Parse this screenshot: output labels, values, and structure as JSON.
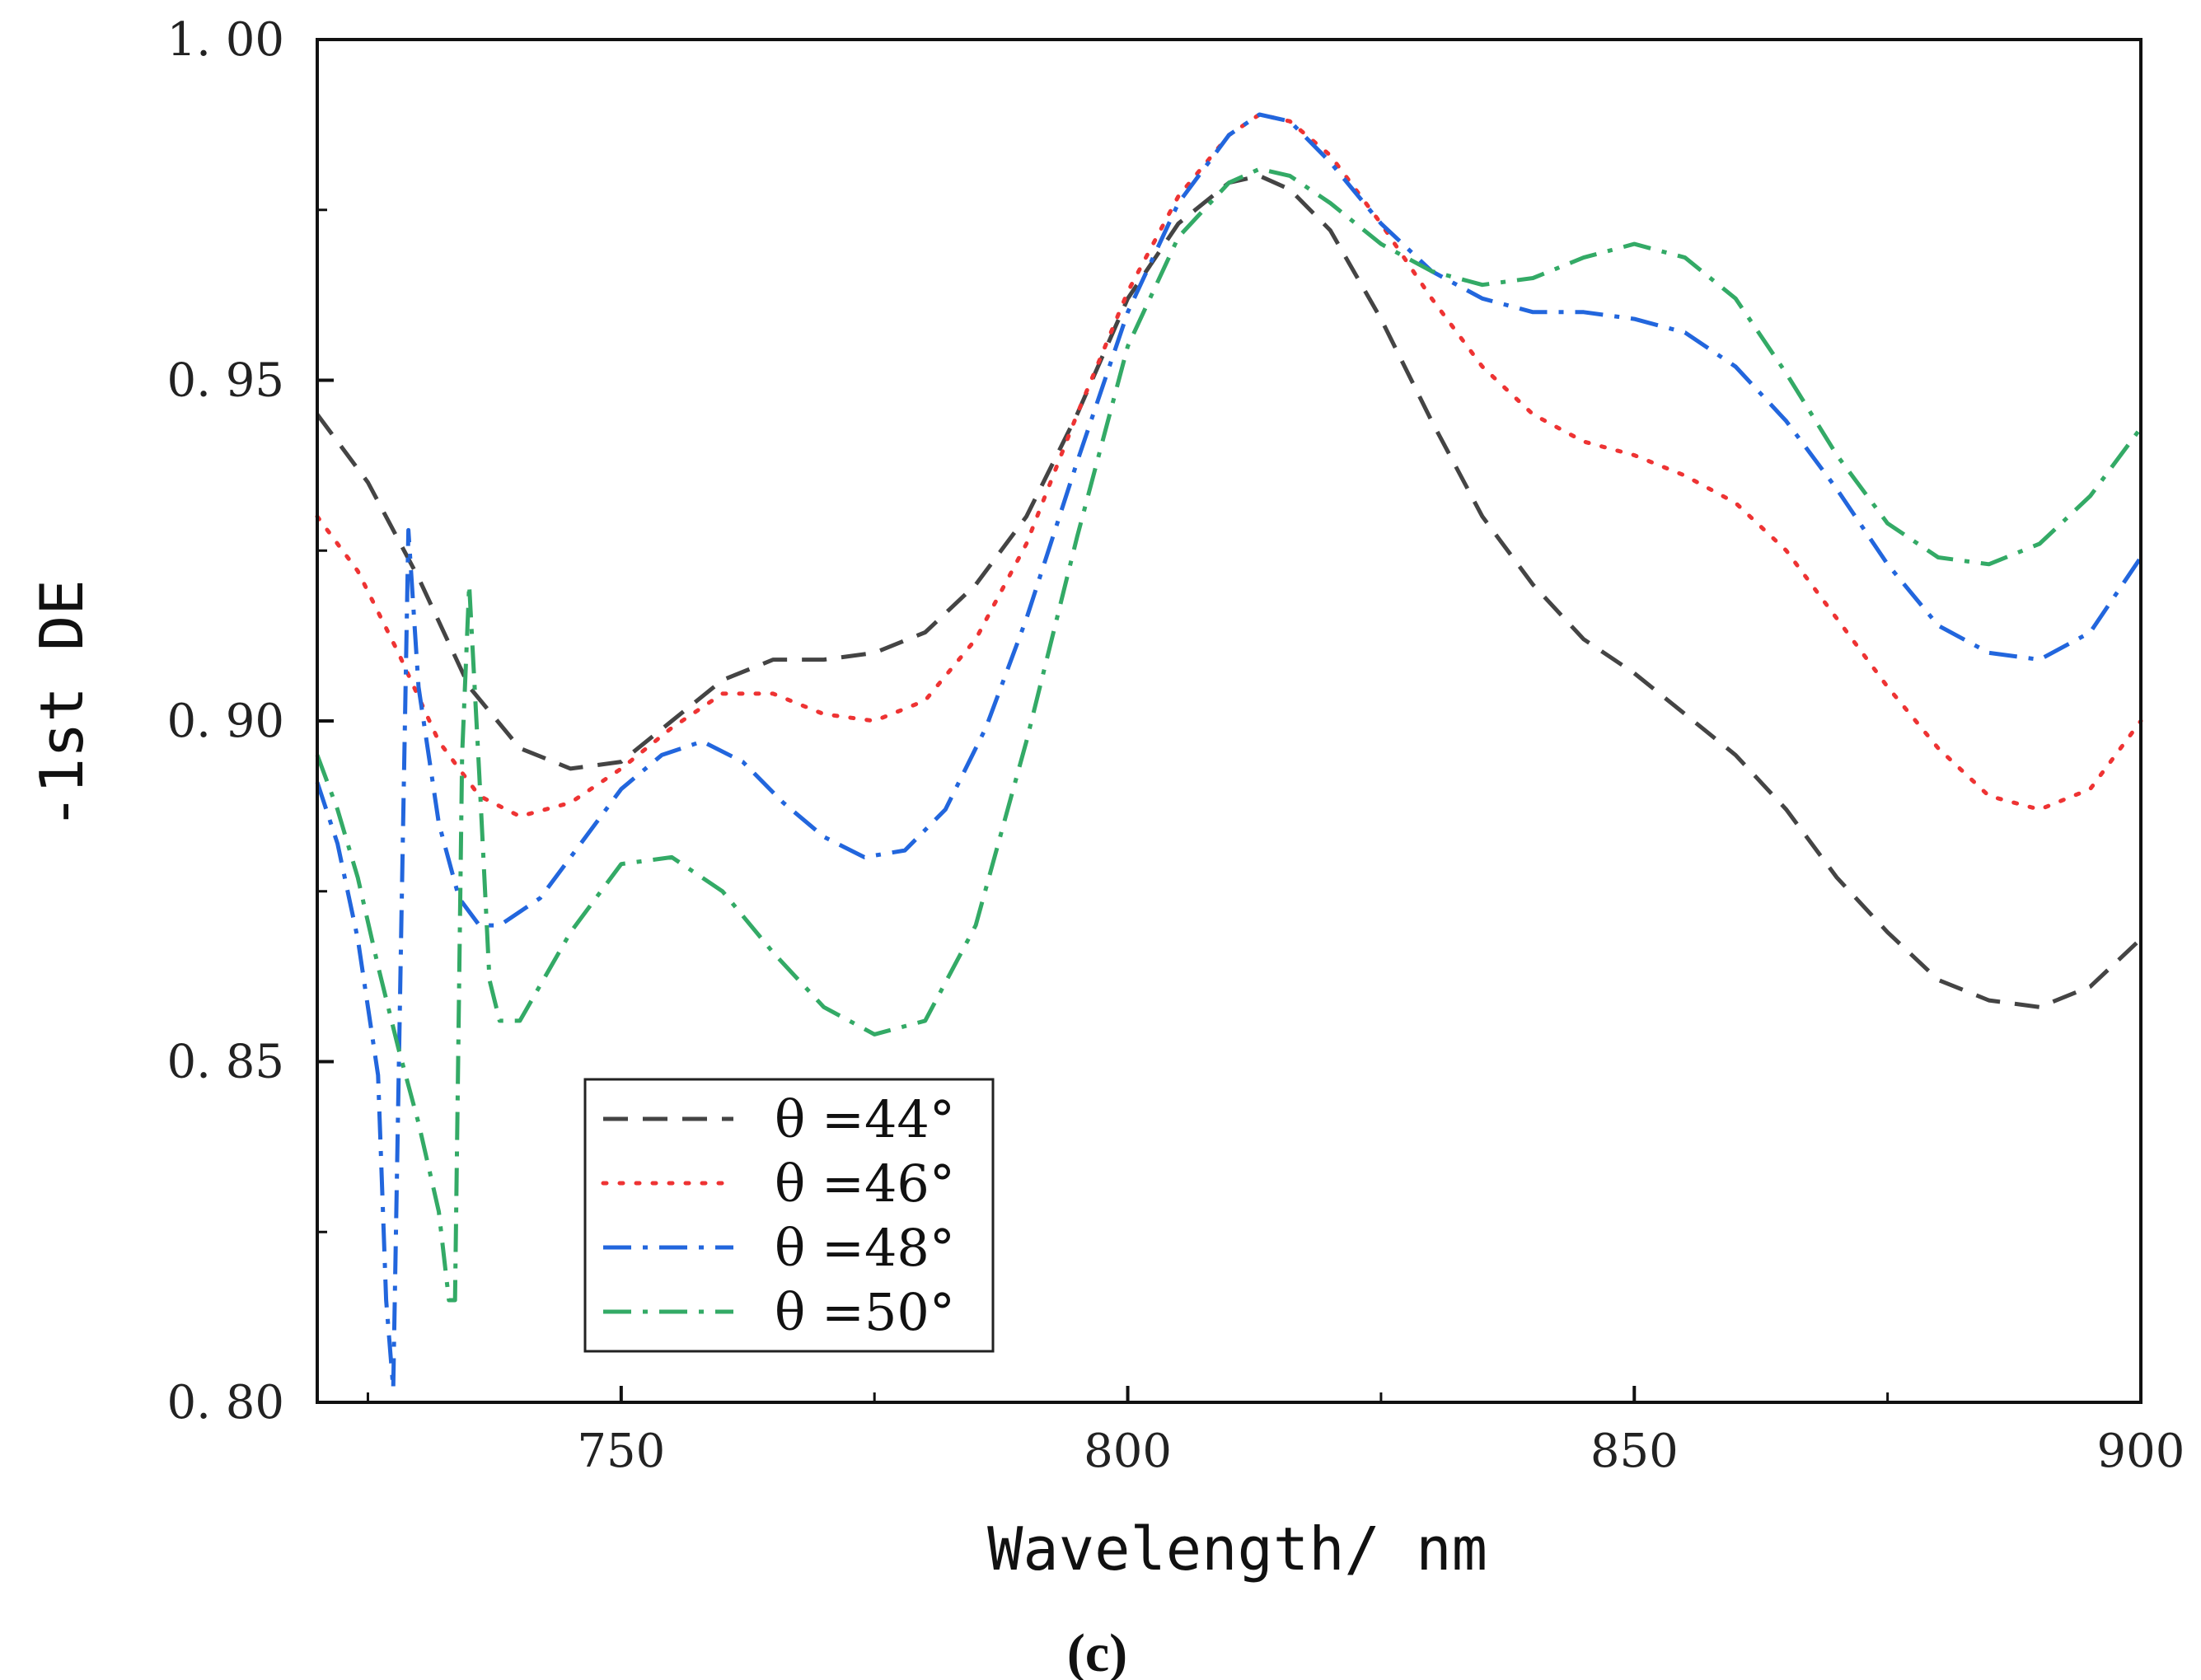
{
  "chart_data": {
    "type": "line",
    "title": "",
    "xlabel": "Wavelength/ nm",
    "ylabel": "-1st DE",
    "panel_label": "(c)",
    "xlim": [
      720,
      900
    ],
    "ylim": [
      0.8,
      1.0
    ],
    "x_ticks": [
      750,
      800,
      850,
      900
    ],
    "x_tick_labels": [
      "750",
      "800",
      "850",
      "900"
    ],
    "y_ticks": [
      0.8,
      0.85,
      0.9,
      0.95,
      1.0
    ],
    "y_tick_labels": [
      "0. 80",
      "0. 85",
      "0. 90",
      "0. 95",
      "1. 00"
    ],
    "grid": false,
    "legend_position": "bottom-left",
    "series": [
      {
        "name": "θ =44°",
        "color": "#444444",
        "dash": "dashed",
        "x": [
          720,
          725,
          730,
          735,
          740,
          745,
          750,
          755,
          760,
          765,
          770,
          775,
          780,
          785,
          790,
          795,
          800,
          805,
          810,
          813,
          816,
          820,
          825,
          830,
          835,
          840,
          845,
          850,
          855,
          860,
          865,
          870,
          875,
          880,
          885,
          890,
          895,
          900
        ],
        "values": [
          0.945,
          0.935,
          0.921,
          0.905,
          0.896,
          0.893,
          0.894,
          0.9,
          0.906,
          0.909,
          0.909,
          0.91,
          0.913,
          0.92,
          0.93,
          0.945,
          0.962,
          0.973,
          0.979,
          0.98,
          0.978,
          0.972,
          0.959,
          0.944,
          0.93,
          0.92,
          0.912,
          0.907,
          0.901,
          0.895,
          0.887,
          0.877,
          0.869,
          0.862,
          0.859,
          0.858,
          0.861,
          0.868
        ]
      },
      {
        "name": "θ =46°",
        "color": "#ee3333",
        "dash": "dotted",
        "x": [
          720,
          724,
          728,
          732,
          736,
          740,
          745,
          750,
          755,
          760,
          765,
          770,
          775,
          780,
          785,
          790,
          795,
          800,
          805,
          810,
          813,
          816,
          820,
          825,
          830,
          835,
          840,
          845,
          850,
          855,
          860,
          865,
          870,
          875,
          880,
          885,
          890,
          895,
          900
        ],
        "values": [
          0.93,
          0.922,
          0.91,
          0.897,
          0.889,
          0.886,
          0.888,
          0.893,
          0.899,
          0.904,
          0.904,
          0.901,
          0.9,
          0.903,
          0.912,
          0.926,
          0.945,
          0.963,
          0.977,
          0.986,
          0.989,
          0.988,
          0.983,
          0.973,
          0.962,
          0.952,
          0.945,
          0.941,
          0.939,
          0.936,
          0.932,
          0.925,
          0.915,
          0.905,
          0.896,
          0.889,
          0.887,
          0.89,
          0.9
        ]
      },
      {
        "name": "θ =48°",
        "color": "#2266dd",
        "dash": "dashdot",
        "x": [
          720,
          722,
          724,
          726,
          726.8,
          727.5,
          728.3,
          729,
          730,
          732,
          734,
          736,
          738,
          742,
          746,
          750,
          754,
          758,
          762,
          766,
          770,
          774,
          778,
          782,
          786,
          790,
          795,
          800,
          805,
          810,
          813,
          816,
          820,
          825,
          830,
          835,
          840,
          845,
          850,
          855,
          860,
          865,
          870,
          875,
          880,
          885,
          890,
          895,
          900
        ],
        "values": [
          0.891,
          0.882,
          0.868,
          0.848,
          0.815,
          0.802,
          0.87,
          0.928,
          0.905,
          0.885,
          0.874,
          0.87,
          0.87,
          0.874,
          0.882,
          0.89,
          0.895,
          0.897,
          0.894,
          0.888,
          0.883,
          0.88,
          0.881,
          0.887,
          0.899,
          0.915,
          0.938,
          0.96,
          0.976,
          0.986,
          0.989,
          0.988,
          0.982,
          0.973,
          0.966,
          0.962,
          0.96,
          0.96,
          0.959,
          0.957,
          0.952,
          0.944,
          0.934,
          0.923,
          0.914,
          0.91,
          0.909,
          0.913,
          0.924
        ]
      },
      {
        "name": "θ =50°",
        "color": "#33aa66",
        "dash": "dashdot",
        "x": [
          720,
          722,
          724,
          726,
          728,
          730,
          732,
          733,
          733.6,
          734.3,
          735,
          736,
          737,
          738,
          740,
          745,
          750,
          755,
          760,
          765,
          770,
          775,
          780,
          785,
          790,
          795,
          800,
          805,
          810,
          813,
          816,
          820,
          825,
          830,
          835,
          840,
          845,
          850,
          855,
          860,
          865,
          870,
          875,
          880,
          885,
          890,
          895,
          900
        ],
        "values": [
          0.895,
          0.887,
          0.877,
          0.864,
          0.852,
          0.841,
          0.828,
          0.815,
          0.815,
          0.895,
          0.92,
          0.892,
          0.862,
          0.856,
          0.856,
          0.869,
          0.879,
          0.88,
          0.875,
          0.866,
          0.858,
          0.854,
          0.856,
          0.87,
          0.897,
          0.927,
          0.955,
          0.971,
          0.979,
          0.981,
          0.98,
          0.976,
          0.97,
          0.966,
          0.964,
          0.965,
          0.968,
          0.97,
          0.968,
          0.962,
          0.951,
          0.939,
          0.929,
          0.924,
          0.923,
          0.926,
          0.933,
          0.943
        ]
      }
    ]
  }
}
